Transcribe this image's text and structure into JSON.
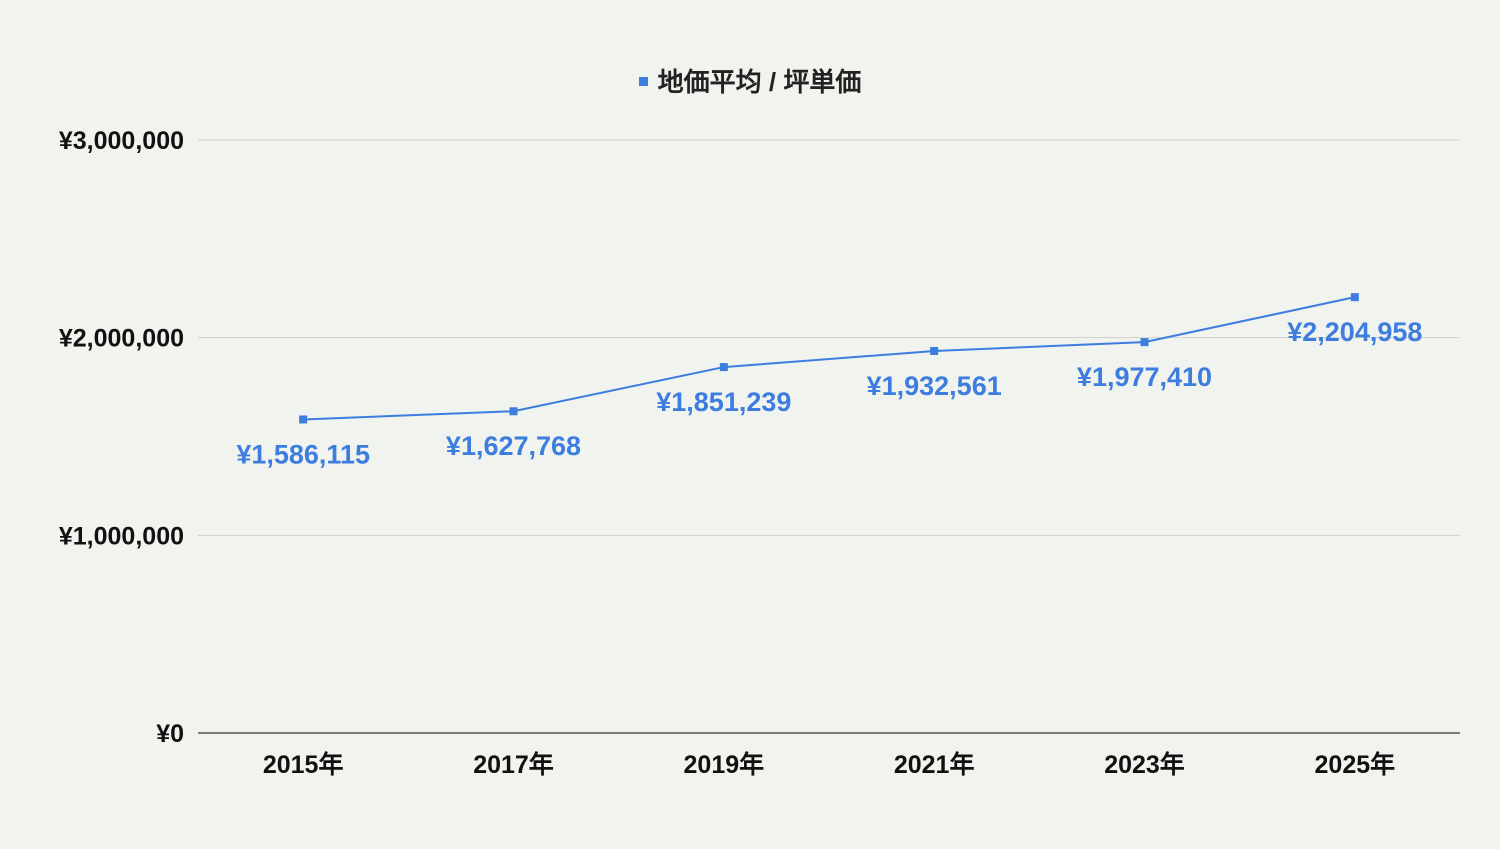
{
  "chart_data": {
    "type": "line",
    "title": "",
    "xlabel": "",
    "ylabel": "",
    "legend_position": "top-center",
    "grid": true,
    "categories": [
      "2015年",
      "2017年",
      "2019年",
      "2021年",
      "2023年",
      "2025年"
    ],
    "series": [
      {
        "name": "地価平均 / 坪単価",
        "color": "#3c7ddf",
        "values": [
          1586115,
          1627768,
          1851239,
          1932561,
          1977410,
          2204958
        ],
        "data_labels": [
          "¥1,586,115",
          "¥1,627,768",
          "¥1,851,239",
          "¥1,932,561",
          "¥1,977,410",
          "¥2,204,958"
        ]
      }
    ],
    "ylim": [
      0,
      3000000
    ],
    "yticks": [
      0,
      1000000,
      2000000,
      3000000
    ],
    "ytick_labels": [
      "¥0",
      "¥1,000,000",
      "¥2,000,000",
      "¥3,000,000"
    ]
  },
  "colors": {
    "background": "#f1f3ee",
    "gridline": "#cfd1cc",
    "axis": "#333333",
    "tick_text": "#111111"
  }
}
